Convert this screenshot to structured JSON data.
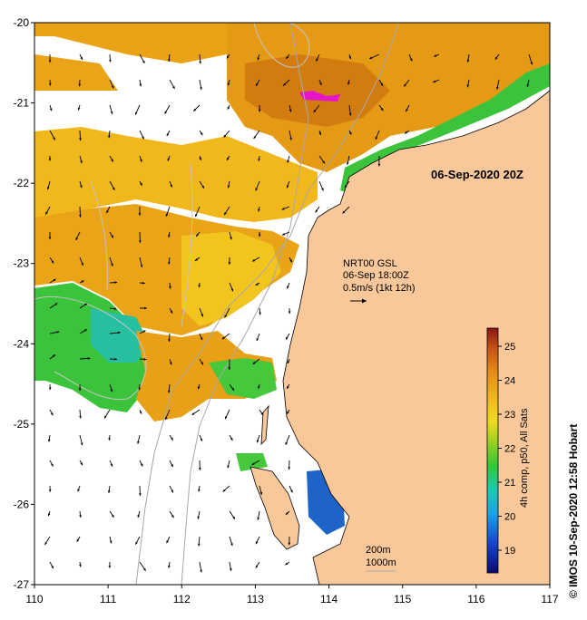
{
  "map": {
    "lon_ticks": [
      "110",
      "111",
      "112",
      "113",
      "114",
      "115",
      "116",
      "117"
    ],
    "lat_ticks": [
      "-20",
      "-21",
      "-22",
      "-23",
      "-24",
      "-25",
      "-26",
      "-27"
    ],
    "timestamp": "06-Sep-2020 20Z",
    "current_box": {
      "line1": "NRT00 GSL",
      "line2": "06-Sep 18:00Z",
      "line3": "0.5m/s (1kt 12h)"
    },
    "isobath_200": "200m",
    "isobath_1000": "1000m"
  },
  "colorbar": {
    "ticks": [
      "19",
      "20",
      "21",
      "22",
      "23",
      "24",
      "25"
    ],
    "label": "4h comp, p50, All Sats"
  },
  "credit": "© IMOS 10-Sep-2020 12:58 Hobart",
  "colors": {
    "land": "#f8c89a",
    "sst_warm": "#e49a14",
    "sst_mid": "#f0b81c",
    "sst_green": "#3cc33c",
    "sst_cool": "#1e64c8"
  }
}
